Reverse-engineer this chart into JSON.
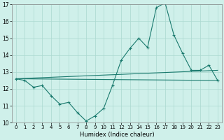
{
  "xlabel": "Humidex (Indice chaleur)",
  "background_color": "#cff0ea",
  "line_color": "#1a7a6e",
  "grid_color": "#aad8d0",
  "xlim": [
    -0.5,
    23.5
  ],
  "ylim": [
    10,
    17
  ],
  "yticks": [
    10,
    11,
    12,
    13,
    14,
    15,
    16,
    17
  ],
  "xticks": [
    0,
    1,
    2,
    3,
    4,
    5,
    6,
    7,
    8,
    9,
    10,
    11,
    12,
    13,
    14,
    15,
    16,
    17,
    18,
    19,
    20,
    21,
    22,
    23
  ],
  "series1_x": [
    0,
    1,
    2,
    3,
    4,
    5,
    6,
    7,
    8,
    9,
    10,
    11,
    12,
    13,
    14,
    15,
    16,
    17,
    18,
    19,
    20,
    21,
    22,
    23
  ],
  "series1_y": [
    12.6,
    12.5,
    12.1,
    12.2,
    11.6,
    11.1,
    11.2,
    10.6,
    10.1,
    10.4,
    10.85,
    12.2,
    13.7,
    14.4,
    15.0,
    14.45,
    16.8,
    17.1,
    15.2,
    14.1,
    13.1,
    13.1,
    13.4,
    12.5
  ],
  "trend1_x": [
    0,
    23
  ],
  "trend1_y": [
    12.6,
    12.5
  ],
  "trend2_x": [
    0,
    23
  ],
  "trend2_y": [
    12.6,
    13.1
  ]
}
